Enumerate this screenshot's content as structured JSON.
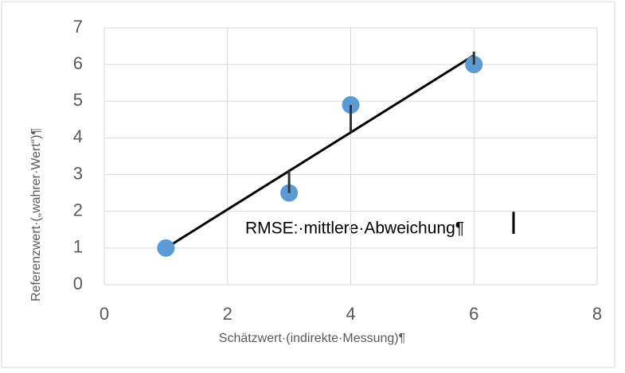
{
  "chart_data": {
    "type": "scatter",
    "x_label": "Schätzwert·(indirekte·Messung)¶",
    "y_label": "Referenzwert·(„wahrer·Wert“)¶",
    "annotation": "RMSE:·mittlere·Abweichung¶",
    "x": [
      1,
      3,
      4,
      6
    ],
    "values": [
      1,
      2.5,
      4.9,
      6
    ],
    "color": "#5b9bd5",
    "fit": {
      "x": [
        1,
        6
      ],
      "values": [
        1,
        6.25
      ],
      "color": "#000000"
    },
    "residuals": {
      "x": [
        3,
        4,
        6
      ],
      "low": [
        2.5,
        4.15,
        6.0
      ],
      "high": [
        3.1,
        4.9,
        6.35
      ],
      "color": "#333333"
    },
    "xlim": [
      0,
      8
    ],
    "xticks": [
      0,
      2,
      4,
      6,
      8
    ],
    "ylim": [
      0,
      7
    ],
    "yticks": [
      0,
      1,
      2,
      3,
      4,
      5,
      6,
      7
    ],
    "grid": true
  }
}
